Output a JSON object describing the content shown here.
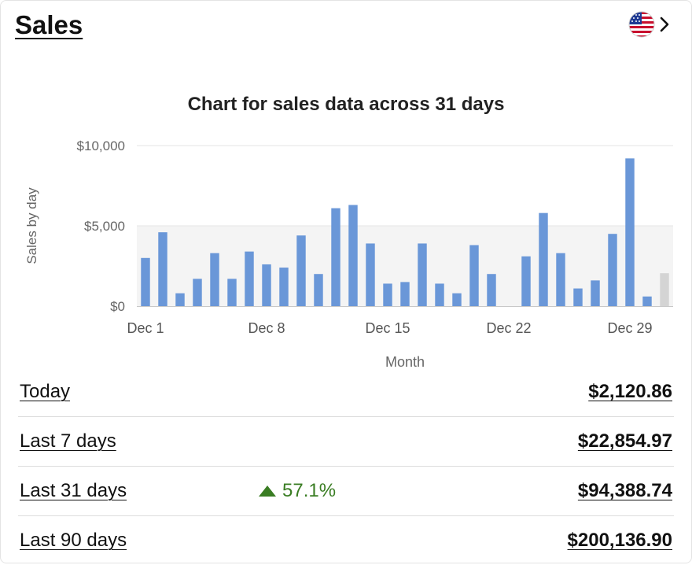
{
  "header": {
    "title": "Sales",
    "region_icon": "us-flag-icon",
    "chevron_icon": "chevron-right-icon"
  },
  "chart_data": {
    "type": "bar",
    "title": "Chart for sales data across 31 days",
    "xlabel": "Month",
    "ylabel": "Sales by day",
    "ylim": [
      0,
      10000
    ],
    "yticks": [
      "$0",
      "$5,000",
      "$10,000"
    ],
    "xtick_labels": [
      "Dec 1",
      "Dec 8",
      "Dec 15",
      "Dec 22",
      "Dec 29"
    ],
    "categories": [
      "Dec 1",
      "Dec 2",
      "Dec 3",
      "Dec 4",
      "Dec 5",
      "Dec 6",
      "Dec 7",
      "Dec 8",
      "Dec 9",
      "Dec 10",
      "Dec 11",
      "Dec 12",
      "Dec 13",
      "Dec 14",
      "Dec 15",
      "Dec 16",
      "Dec 17",
      "Dec 18",
      "Dec 19",
      "Dec 20",
      "Dec 21",
      "Dec 22",
      "Dec 23",
      "Dec 24",
      "Dec 25",
      "Dec 26",
      "Dec 27",
      "Dec 28",
      "Dec 29",
      "Dec 30",
      "Dec 31"
    ],
    "values": [
      3000,
      4600,
      800,
      1700,
      3300,
      1700,
      3400,
      2600,
      2400,
      4400,
      2000,
      6100,
      6300,
      3900,
      1400,
      1500,
      3900,
      1400,
      800,
      3800,
      2000,
      0,
      3100,
      5800,
      3300,
      1100,
      1600,
      4500,
      9200,
      600,
      2050
    ],
    "bar_color": "#6a97d8",
    "last_bar_color": "#d4d4d4",
    "band_color": "#f4f4f4"
  },
  "summary": [
    {
      "label": "Today",
      "value": "$2,120.86",
      "change": ""
    },
    {
      "label": "Last 7 days",
      "value": "$22,854.97",
      "change": ""
    },
    {
      "label": "Last 31 days",
      "value": "$94,388.74",
      "change": "57.1%"
    },
    {
      "label": "Last 90 days",
      "value": "$200,136.90",
      "change": ""
    }
  ],
  "colors": {
    "positive": "#3a7d23"
  }
}
